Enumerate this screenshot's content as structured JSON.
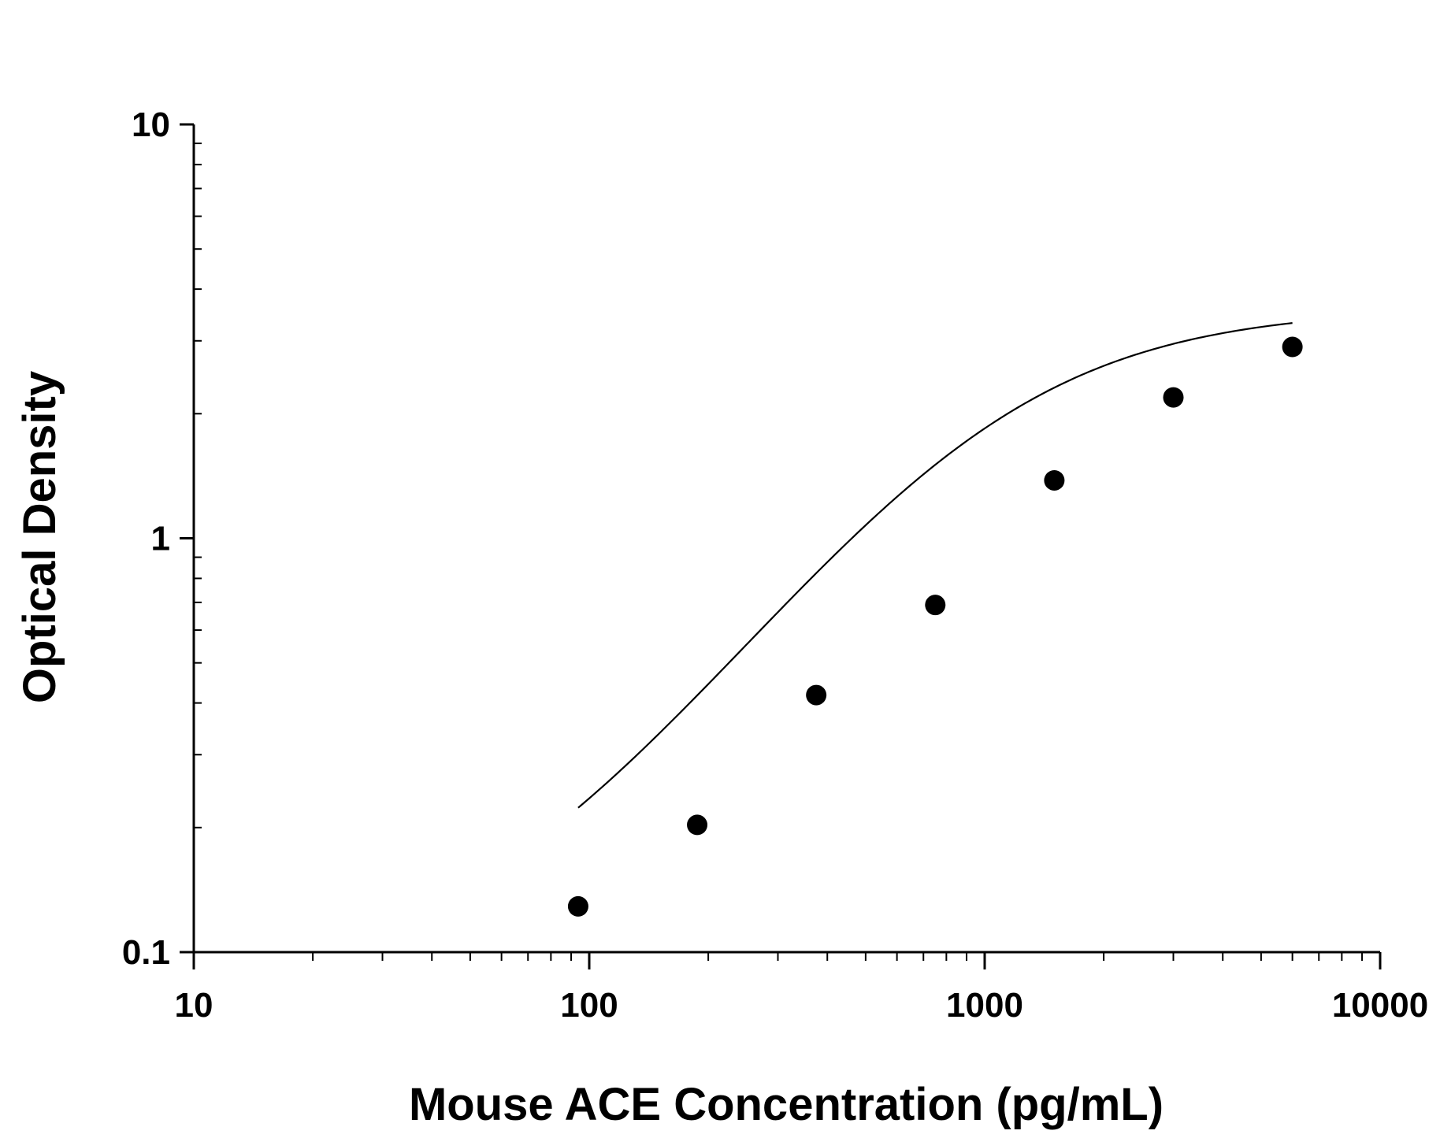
{
  "chart_data": {
    "type": "scatter",
    "title": "",
    "xlabel": "Mouse ACE Concentration (pg/mL)",
    "ylabel": "Optical Density",
    "xscale": "log",
    "yscale": "log",
    "xlim": [
      10,
      10000
    ],
    "ylim": [
      0.1,
      10
    ],
    "x_ticks": [
      "10",
      "100",
      "1000",
      "10000"
    ],
    "y_ticks": [
      "0.1",
      "1",
      "10"
    ],
    "grid": false,
    "legend": "none",
    "series": [
      {
        "points": [
          [
            93.75,
            0.129
          ],
          [
            187.5,
            0.203
          ],
          [
            375,
            0.418
          ],
          [
            750,
            0.69
          ],
          [
            1500,
            1.38
          ],
          [
            3000,
            2.19
          ],
          [
            6000,
            2.9
          ]
        ]
      }
    ],
    "fit_curve": {
      "type": "4PL",
      "x_range": [
        93.75,
        6000
      ]
    },
    "colors": {
      "marker": "#000000",
      "line": "#000000",
      "axis": "#000000"
    }
  }
}
